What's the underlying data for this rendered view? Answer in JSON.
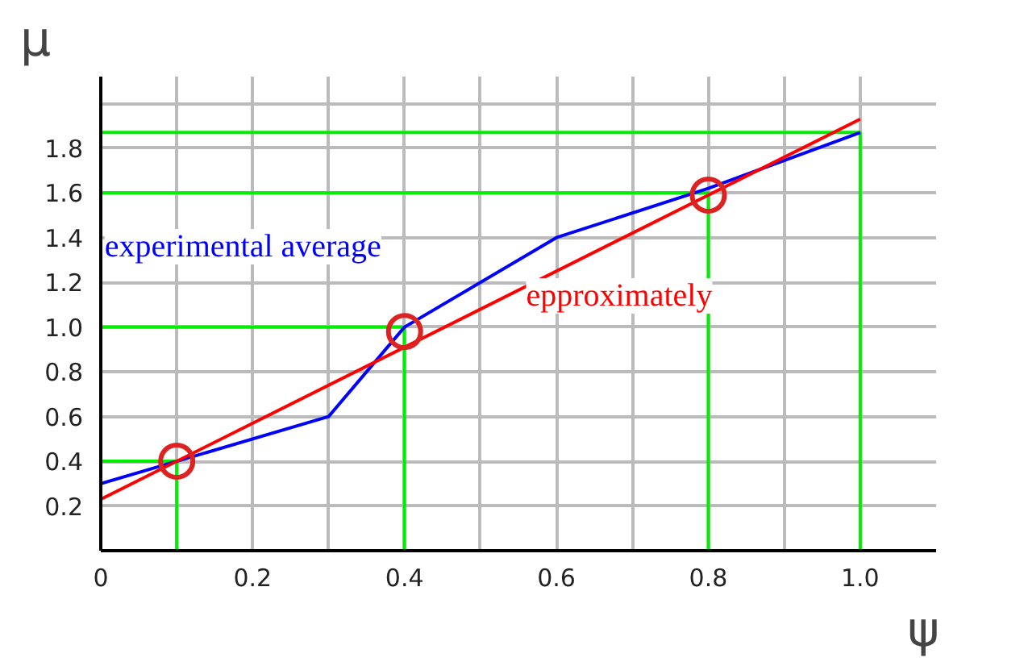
{
  "chart_data": {
    "type": "line",
    "xlabel": "ψ",
    "ylabel": "μ",
    "xlim": [
      0,
      1.1
    ],
    "ylim": [
      0,
      2.12
    ],
    "xticks": [
      {
        "value": 0,
        "label": "0"
      },
      {
        "value": 0.1,
        "label": null
      },
      0.2,
      {
        "value": 0.3,
        "label": null
      },
      0.4,
      {
        "value": 0.5,
        "label": null
      },
      0.6,
      {
        "value": 0.7,
        "label": null
      },
      0.8,
      {
        "value": 0.9,
        "label": null
      },
      {
        "value": 1.0,
        "label": "1.0"
      }
    ],
    "yticks": [
      0.2,
      0.4,
      0.6,
      0.8,
      {
        "value": 1.0,
        "label": "1.0"
      },
      1.2,
      1.4,
      1.6,
      1.8,
      {
        "value": 2.0,
        "label": null
      }
    ],
    "grid": true,
    "line_style": "solid",
    "series": [
      {
        "color": "#00ee00",
        "x": [
          0.1,
          0.1,
          0,
          null,
          0.4,
          0.4,
          0,
          null,
          0.8,
          0.8,
          0,
          null,
          1.0,
          1.0,
          0
        ],
        "values": [
          0,
          0.4,
          0.4,
          null,
          0,
          1.0,
          1.0,
          null,
          0,
          1.6,
          1.6,
          null,
          0,
          1.87,
          1.87
        ]
      },
      {
        "name": "experimental average",
        "color": "#0000ff",
        "x": [
          0,
          0.1,
          0.3,
          0.4,
          0.6,
          0.8,
          1.0
        ],
        "values": [
          0.3,
          0.4,
          0.6,
          1.0,
          1.4,
          1.62,
          1.87
        ]
      },
      {
        "name": "epproximately",
        "color": "#ff0000",
        "x": [
          0,
          1.0
        ],
        "values": [
          0.23,
          1.93
        ]
      },
      {
        "type": "scatter",
        "marker": "circle",
        "color": "#dd2222",
        "x": [
          0.1,
          0.4,
          0.8
        ],
        "values": [
          0.4,
          0.98,
          1.59
        ]
      }
    ]
  }
}
